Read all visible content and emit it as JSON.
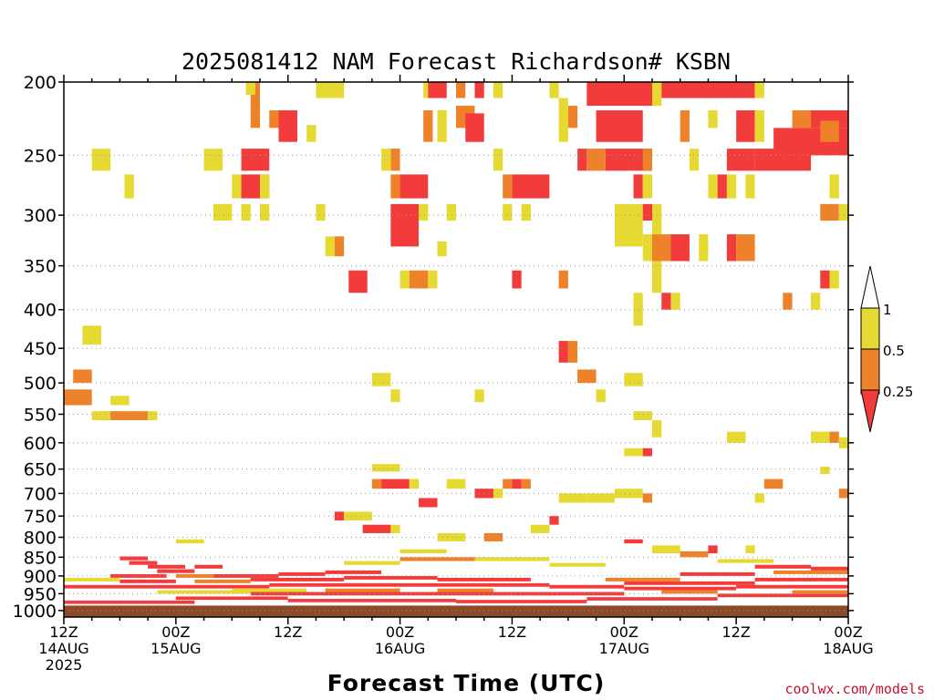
{
  "credit": "coolwx.com/models",
  "colors": {
    "low": "#f23c3c",
    "mid": "#ee822a",
    "high": "#e6d932",
    "ground": "#8b4a28"
  },
  "chart_data": {
    "type": "heatmap",
    "title": "2025081412 NAM Forecast Richardson# KSBN",
    "xlabel": "Forecast Time (UTC)",
    "ylabel": "",
    "x_range_hours": [
      0,
      84
    ],
    "y_range_hpa": [
      200,
      1020
    ],
    "y_scale": "log",
    "grid": "dotted horizontal",
    "y_ticks": [
      200,
      250,
      300,
      350,
      400,
      450,
      500,
      550,
      600,
      650,
      700,
      750,
      800,
      850,
      900,
      950,
      1000
    ],
    "x_ticks": [
      {
        "hour": 0,
        "lines": [
          "12Z",
          "14AUG",
          "2025"
        ]
      },
      {
        "hour": 12,
        "lines": [
          "00Z",
          "15AUG"
        ]
      },
      {
        "hour": 24,
        "lines": [
          "12Z"
        ]
      },
      {
        "hour": 36,
        "lines": [
          "00Z",
          "16AUG"
        ]
      },
      {
        "hour": 48,
        "lines": [
          "12Z"
        ]
      },
      {
        "hour": 60,
        "lines": [
          "00Z",
          "17AUG"
        ]
      },
      {
        "hour": 72,
        "lines": [
          "12Z"
        ]
      },
      {
        "hour": 84,
        "lines": [
          "00Z",
          "18AUG"
        ]
      }
    ],
    "colorbar": {
      "labels": [
        "1",
        "0.5",
        "0.25"
      ],
      "bins": [
        {
          "range": "0.5-1",
          "color": "#e6d932"
        },
        {
          "range": "0.25-0.5",
          "color": "#ee822a"
        },
        {
          "range": "<0.25",
          "color": "#f23c3c"
        }
      ]
    },
    "ground_level_hpa": 985,
    "cells": [
      [
        20,
        21,
        200,
        218,
        "mid"
      ],
      [
        20,
        21,
        218,
        230,
        "mid"
      ],
      [
        22,
        23,
        218,
        230,
        "mid"
      ],
      [
        23,
        25,
        218,
        240,
        "low"
      ],
      [
        26,
        27,
        228,
        240,
        "high"
      ],
      [
        27,
        30,
        200,
        210,
        "high"
      ],
      [
        19.5,
        20.5,
        200,
        208,
        "high"
      ],
      [
        19,
        22,
        245,
        262,
        "low"
      ],
      [
        15,
        17,
        245,
        262,
        "high"
      ],
      [
        3,
        5,
        245,
        262,
        "high"
      ],
      [
        19,
        22,
        265,
        285,
        "low"
      ],
      [
        18,
        19,
        265,
        285,
        "high"
      ],
      [
        21,
        22,
        265,
        285,
        "high"
      ],
      [
        6.5,
        7.5,
        265,
        285,
        "high"
      ],
      [
        16,
        18,
        290,
        305,
        "high"
      ],
      [
        19,
        20,
        290,
        305,
        "high"
      ],
      [
        21,
        22,
        290,
        305,
        "high"
      ],
      [
        27,
        28,
        290,
        305,
        "high"
      ],
      [
        28,
        29,
        320,
        340,
        "high"
      ],
      [
        29,
        30,
        320,
        340,
        "mid"
      ],
      [
        30.5,
        32.5,
        355,
        380,
        "low"
      ],
      [
        38.5,
        39,
        200,
        210,
        "high"
      ],
      [
        39,
        41,
        200,
        210,
        "low"
      ],
      [
        38.5,
        39.5,
        218,
        240,
        "mid"
      ],
      [
        40,
        41,
        218,
        240,
        "high"
      ],
      [
        42,
        43,
        200,
        210,
        "mid"
      ],
      [
        42,
        44,
        215,
        230,
        "mid"
      ],
      [
        44,
        45,
        200,
        210,
        "low"
      ],
      [
        43,
        45,
        220,
        240,
        "low"
      ],
      [
        46,
        47,
        200,
        210,
        "high"
      ],
      [
        35,
        36,
        245,
        262,
        "mid"
      ],
      [
        34,
        35,
        245,
        262,
        "high"
      ],
      [
        35,
        36,
        265,
        285,
        "mid"
      ],
      [
        36,
        39,
        265,
        285,
        "low"
      ],
      [
        35,
        38,
        290,
        330,
        "low"
      ],
      [
        38,
        39,
        290,
        305,
        "high"
      ],
      [
        41,
        42,
        290,
        305,
        "high"
      ],
      [
        40,
        41,
        325,
        340,
        "high"
      ],
      [
        36,
        37,
        355,
        375,
        "high"
      ],
      [
        37,
        39,
        355,
        375,
        "mid"
      ],
      [
        39,
        40,
        355,
        375,
        "high"
      ],
      [
        46,
        47,
        245,
        262,
        "high"
      ],
      [
        47,
        48,
        265,
        285,
        "mid"
      ],
      [
        48,
        52,
        265,
        285,
        "low"
      ],
      [
        47,
        48,
        290,
        305,
        "high"
      ],
      [
        49,
        50,
        290,
        305,
        "high"
      ],
      [
        48,
        49,
        355,
        375,
        "low"
      ],
      [
        53,
        54,
        355,
        375,
        "mid"
      ],
      [
        52,
        53,
        200,
        210,
        "high"
      ],
      [
        53,
        54,
        210,
        240,
        "high"
      ],
      [
        54,
        55,
        215,
        230,
        "mid"
      ],
      [
        56,
        63,
        200,
        215,
        "low"
      ],
      [
        63,
        64,
        200,
        215,
        "high"
      ],
      [
        64,
        74,
        200,
        210,
        "low"
      ],
      [
        74,
        75,
        200,
        210,
        "high"
      ],
      [
        57,
        62,
        218,
        240,
        "low"
      ],
      [
        55,
        56,
        245,
        262,
        "low"
      ],
      [
        56,
        58,
        245,
        262,
        "mid"
      ],
      [
        58,
        61,
        245,
        262,
        "low"
      ],
      [
        61,
        63,
        245,
        262,
        "low"
      ],
      [
        62,
        63,
        245,
        262,
        "mid"
      ],
      [
        66,
        67,
        218,
        240,
        "mid"
      ],
      [
        67,
        68,
        245,
        262,
        "high"
      ],
      [
        69,
        70,
        218,
        230,
        "high"
      ],
      [
        72,
        74,
        218,
        240,
        "low"
      ],
      [
        74,
        75,
        218,
        240,
        "high"
      ],
      [
        71,
        74,
        245,
        262,
        "low"
      ],
      [
        74,
        80,
        245,
        262,
        "low"
      ],
      [
        76,
        84,
        230,
        250,
        "low"
      ],
      [
        78,
        80,
        218,
        230,
        "mid"
      ],
      [
        80,
        84,
        218,
        230,
        "low"
      ],
      [
        81,
        83,
        225,
        240,
        "mid"
      ],
      [
        84,
        85,
        245,
        262,
        "mid"
      ],
      [
        61,
        62,
        265,
        285,
        "low"
      ],
      [
        62,
        63,
        265,
        285,
        "high"
      ],
      [
        59,
        62,
        290,
        330,
        "high"
      ],
      [
        62,
        63,
        290,
        305,
        "low"
      ],
      [
        63,
        64,
        290,
        330,
        "high"
      ],
      [
        69,
        70,
        265,
        285,
        "high"
      ],
      [
        70,
        71,
        265,
        285,
        "low"
      ],
      [
        71,
        72,
        265,
        285,
        "high"
      ],
      [
        73,
        74,
        265,
        285,
        "high"
      ],
      [
        82,
        83,
        265,
        285,
        "high"
      ],
      [
        81,
        83,
        290,
        305,
        "mid"
      ],
      [
        83,
        84,
        290,
        305,
        "high"
      ],
      [
        65,
        67,
        318,
        345,
        "low"
      ],
      [
        63,
        65,
        318,
        345,
        "mid"
      ],
      [
        62,
        63,
        318,
        345,
        "high"
      ],
      [
        68,
        69,
        318,
        345,
        "high"
      ],
      [
        71,
        72,
        318,
        345,
        "low"
      ],
      [
        72,
        74,
        318,
        345,
        "mid"
      ],
      [
        63,
        64,
        345,
        380,
        "high"
      ],
      [
        61,
        62,
        380,
        420,
        "high"
      ],
      [
        64,
        65,
        380,
        400,
        "low"
      ],
      [
        65,
        66,
        380,
        400,
        "high"
      ],
      [
        81,
        82,
        355,
        375,
        "low"
      ],
      [
        82,
        83,
        355,
        375,
        "high"
      ],
      [
        77,
        78,
        380,
        400,
        "mid"
      ],
      [
        80,
        81,
        380,
        400,
        "high"
      ],
      [
        53,
        54,
        440,
        470,
        "low"
      ],
      [
        54,
        55,
        440,
        470,
        "mid"
      ],
      [
        55,
        57,
        480,
        500,
        "mid"
      ],
      [
        1,
        3,
        480,
        500,
        "mid"
      ],
      [
        0,
        3,
        510,
        535,
        "mid"
      ],
      [
        2,
        4,
        420,
        445,
        "high"
      ],
      [
        4,
        9,
        545,
        560,
        "mid"
      ],
      [
        3,
        5,
        545,
        560,
        "high"
      ],
      [
        9,
        10,
        545,
        560,
        "high"
      ],
      [
        5,
        7,
        520,
        535,
        "high"
      ],
      [
        33,
        35,
        485,
        505,
        "high"
      ],
      [
        35,
        36,
        510,
        530,
        "high"
      ],
      [
        44,
        45,
        510,
        530,
        "high"
      ],
      [
        57,
        58,
        510,
        530,
        "high"
      ],
      [
        60,
        62,
        485,
        505,
        "high"
      ],
      [
        61,
        63,
        545,
        560,
        "high"
      ],
      [
        63,
        64,
        560,
        590,
        "high"
      ],
      [
        60,
        62,
        610,
        625,
        "high"
      ],
      [
        62,
        63,
        610,
        625,
        "low"
      ],
      [
        71,
        73,
        580,
        600,
        "high"
      ],
      [
        80,
        82,
        580,
        600,
        "high"
      ],
      [
        82,
        83,
        580,
        600,
        "mid"
      ],
      [
        83,
        84,
        590,
        610,
        "high"
      ],
      [
        81,
        82,
        645,
        660,
        "high"
      ],
      [
        33,
        36,
        640,
        655,
        "high"
      ],
      [
        33,
        34,
        670,
        690,
        "mid"
      ],
      [
        34,
        37,
        670,
        690,
        "low"
      ],
      [
        37,
        38,
        670,
        690,
        "high"
      ],
      [
        38,
        40,
        710,
        730,
        "low"
      ],
      [
        41,
        43,
        670,
        690,
        "high"
      ],
      [
        44,
        46,
        690,
        710,
        "low"
      ],
      [
        46,
        47,
        690,
        710,
        "high"
      ],
      [
        47,
        48,
        670,
        690,
        "mid"
      ],
      [
        48,
        49,
        670,
        690,
        "low"
      ],
      [
        49,
        50,
        670,
        690,
        "mid"
      ],
      [
        53,
        56,
        700,
        720,
        "high"
      ],
      [
        56,
        59,
        700,
        720,
        "high"
      ],
      [
        59,
        62,
        690,
        710,
        "high"
      ],
      [
        62,
        63,
        700,
        720,
        "mid"
      ],
      [
        29,
        30,
        740,
        760,
        "low"
      ],
      [
        30,
        33,
        740,
        760,
        "high"
      ],
      [
        32,
        35,
        770,
        790,
        "low"
      ],
      [
        35,
        36,
        770,
        790,
        "high"
      ],
      [
        40,
        43,
        790,
        810,
        "high"
      ],
      [
        45,
        47,
        790,
        810,
        "mid"
      ],
      [
        50,
        52,
        770,
        790,
        "high"
      ],
      [
        52,
        53,
        750,
        770,
        "low"
      ],
      [
        60,
        62,
        805,
        815,
        "low"
      ],
      [
        63,
        66,
        820,
        840,
        "high"
      ],
      [
        66,
        69,
        835,
        850,
        "mid"
      ],
      [
        69,
        70,
        820,
        840,
        "low"
      ],
      [
        73,
        74,
        820,
        840,
        "high"
      ],
      [
        75,
        77,
        670,
        690,
        "mid"
      ],
      [
        74,
        75,
        700,
        720,
        "high"
      ],
      [
        83,
        84,
        690,
        710,
        "mid"
      ],
      [
        84,
        85,
        690,
        710,
        "low"
      ],
      [
        84,
        85,
        700,
        720,
        "high"
      ],
      [
        12,
        15,
        805,
        815,
        "high"
      ],
      [
        36,
        41,
        830,
        840,
        "high"
      ]
    ],
    "low_bands": [
      [
        6,
        9,
        848,
        858,
        "low"
      ],
      [
        7,
        10,
        860,
        870,
        "low"
      ],
      [
        9,
        13,
        870,
        880,
        "low"
      ],
      [
        14,
        17,
        870,
        880,
        "low"
      ],
      [
        10,
        14,
        882,
        892,
        "low"
      ],
      [
        5,
        11,
        895,
        905,
        "low"
      ],
      [
        12,
        16,
        895,
        905,
        "mid"
      ],
      [
        16,
        23,
        895,
        905,
        "low"
      ],
      [
        23,
        28,
        890,
        900,
        "low"
      ],
      [
        28,
        34,
        885,
        895,
        "low"
      ],
      [
        6,
        12,
        910,
        920,
        "low"
      ],
      [
        14,
        20,
        910,
        920,
        "mid"
      ],
      [
        20,
        30,
        905,
        915,
        "low"
      ],
      [
        30,
        40,
        900,
        910,
        "low"
      ],
      [
        40,
        50,
        905,
        915,
        "low"
      ],
      [
        0,
        10,
        925,
        935,
        "low"
      ],
      [
        10,
        22,
        925,
        935,
        "low"
      ],
      [
        22,
        40,
        920,
        930,
        "low"
      ],
      [
        40,
        52,
        920,
        930,
        "low"
      ],
      [
        52,
        60,
        925,
        935,
        "low"
      ],
      [
        60,
        74,
        915,
        925,
        "low"
      ],
      [
        74,
        84,
        905,
        915,
        "low"
      ],
      [
        10,
        20,
        940,
        950,
        "high"
      ],
      [
        20,
        34,
        945,
        955,
        "low"
      ],
      [
        34,
        48,
        945,
        955,
        "low"
      ],
      [
        48,
        60,
        945,
        955,
        "low"
      ],
      [
        60,
        72,
        930,
        940,
        "low"
      ],
      [
        72,
        84,
        925,
        935,
        "low"
      ],
      [
        12,
        24,
        958,
        968,
        "low"
      ],
      [
        24,
        42,
        965,
        975,
        "low"
      ],
      [
        42,
        56,
        968,
        978,
        "low"
      ],
      [
        56,
        70,
        960,
        970,
        "low"
      ],
      [
        70,
        84,
        950,
        960,
        "low"
      ],
      [
        0,
        14,
        970,
        980,
        "low"
      ],
      [
        28,
        36,
        935,
        945,
        "mid"
      ],
      [
        40,
        46,
        935,
        945,
        "mid"
      ],
      [
        58,
        66,
        905,
        915,
        "mid"
      ],
      [
        66,
        74,
        890,
        900,
        "low"
      ],
      [
        76,
        84,
        885,
        895,
        "mid"
      ],
      [
        74,
        80,
        870,
        880,
        "low"
      ],
      [
        80,
        84,
        875,
        885,
        "low"
      ],
      [
        64,
        70,
        940,
        950,
        "mid"
      ],
      [
        78,
        84,
        940,
        950,
        "mid"
      ],
      [
        18,
        26,
        935,
        945,
        "high"
      ],
      [
        0,
        6,
        905,
        915,
        "high"
      ],
      [
        36,
        44,
        850,
        860,
        "mid"
      ],
      [
        44,
        52,
        850,
        860,
        "high"
      ],
      [
        52,
        58,
        865,
        875,
        "high"
      ],
      [
        70,
        76,
        855,
        865,
        "high"
      ],
      [
        30,
        36,
        860,
        870,
        "high"
      ]
    ]
  }
}
